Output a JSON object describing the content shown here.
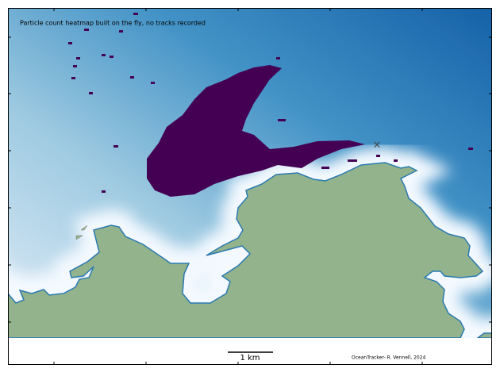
{
  "annotation": "Particle count heatmap built on the fly, no tracks recorded",
  "scale_bar": "1 km",
  "credit": "OceanTracker- R. Vennell, 2024"
}
